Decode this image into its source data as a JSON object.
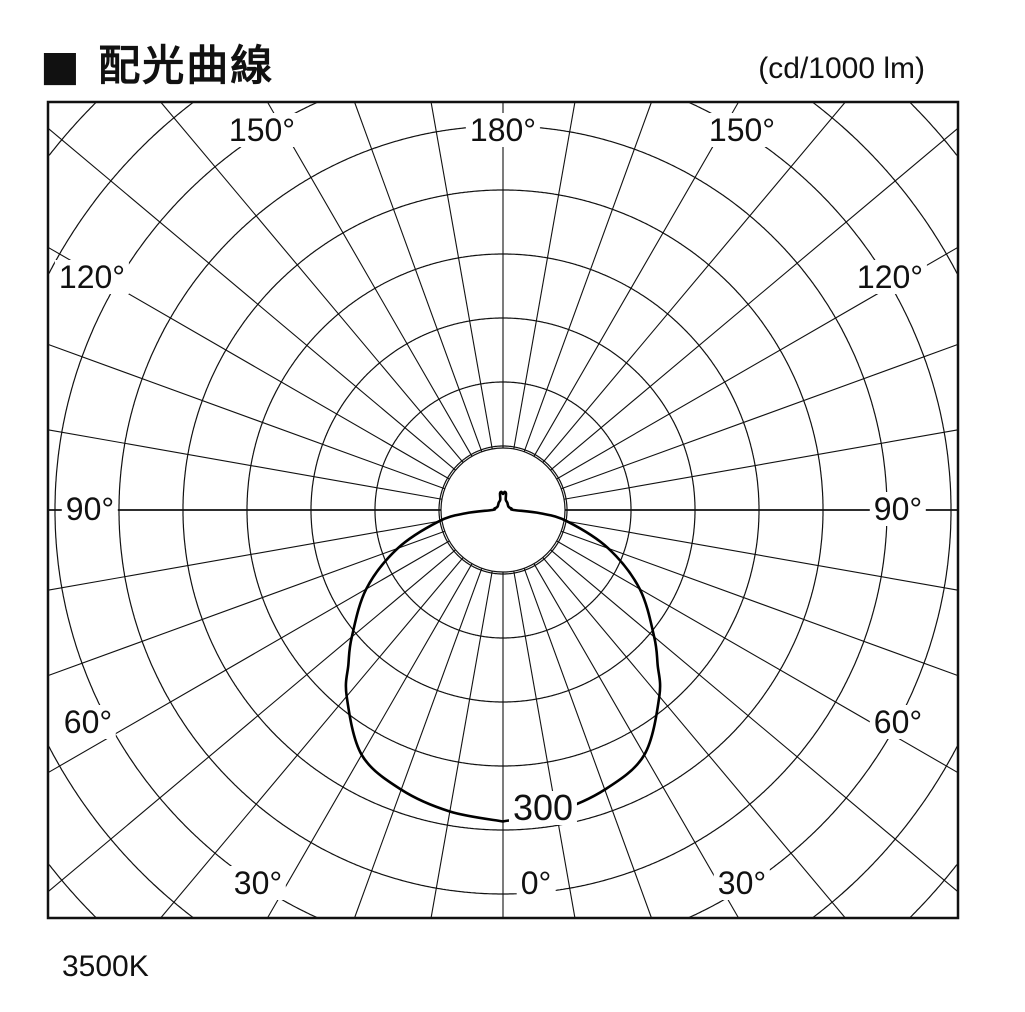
{
  "header": {
    "title": "■ 配光曲線",
    "unit": "(cd/1000 lm)"
  },
  "footer": {
    "color_temp": "3500K"
  },
  "chart_data": {
    "type": "polar",
    "title": "配光曲線",
    "unit": "cd/1000 lm",
    "angle_labels": [
      "180°",
      "150°",
      "150°",
      "120°",
      "120°",
      "90°",
      "90°",
      "60°",
      "60°",
      "30°",
      "30°",
      "0°"
    ],
    "radial_label": "300",
    "radial_label_value": 300,
    "ring_step": 60,
    "spoke_step_deg": 10,
    "grid": true,
    "series": [
      {
        "angles_deg": [
          0,
          10,
          20,
          30,
          40,
          45,
          50,
          60,
          70,
          80,
          85,
          90,
          100,
          120,
          150,
          165,
          170,
          175,
          180
        ],
        "values": [
          292,
          287,
          279,
          265,
          228,
          205,
          185,
          148,
          105,
          61,
          35,
          10,
          8,
          6,
          8,
          10,
          16,
          17,
          15
        ]
      }
    ],
    "colors": {
      "grid": "#111111",
      "curve": "#000000"
    }
  }
}
